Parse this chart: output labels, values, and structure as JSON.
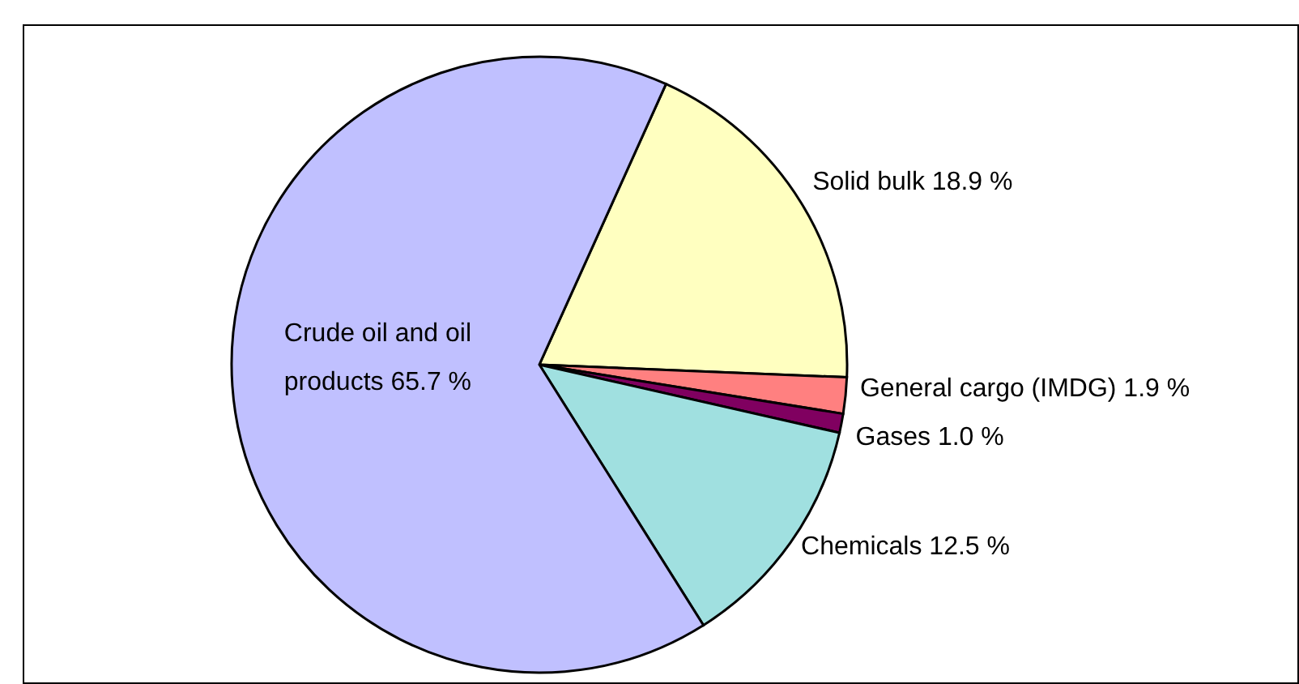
{
  "chart_data": {
    "type": "pie",
    "categories": [
      "Solid bulk",
      "General cargo (IMDG)",
      "Gases",
      "Chemicals",
      "Crude oil and oil products"
    ],
    "values": [
      18.9,
      1.9,
      1.0,
      12.5,
      65.7
    ],
    "value_labels": [
      "18.9 %",
      "1.9 %",
      "1.0 %",
      "12.5 %",
      "65.7 %"
    ],
    "colors": [
      "#ffffc0",
      "#ff8080",
      "#800060",
      "#a0e0e0",
      "#c0c0ff"
    ]
  }
}
